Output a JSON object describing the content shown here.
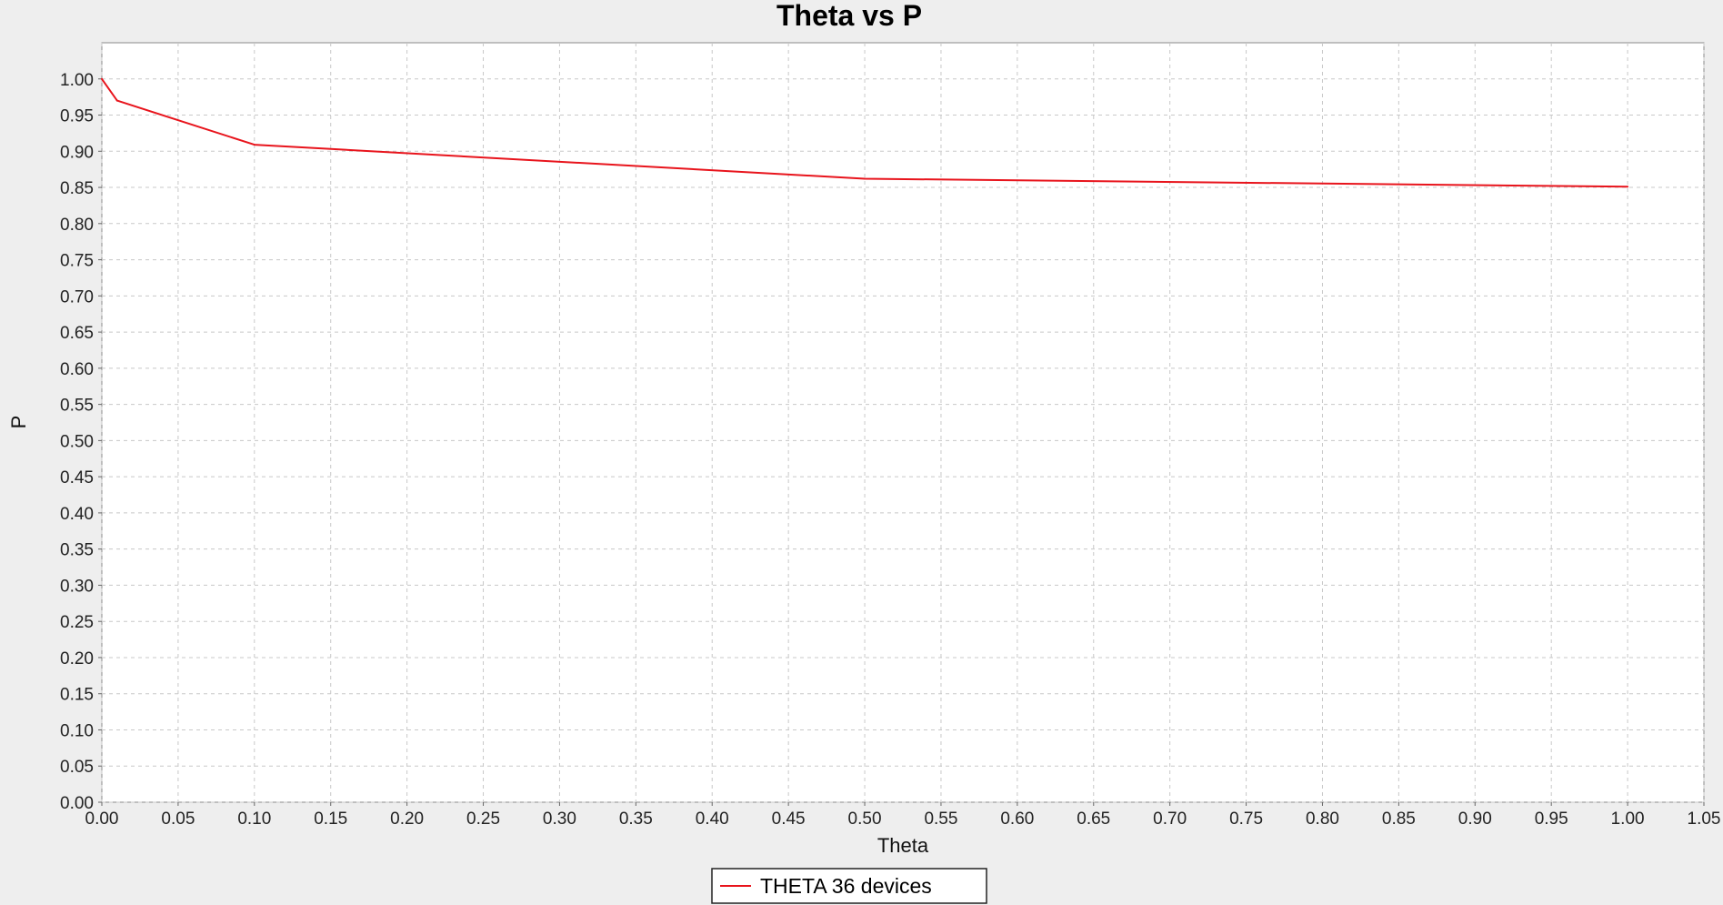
{
  "chart_data": {
    "type": "line",
    "title": "Theta vs P",
    "xlabel": "Theta",
    "ylabel": "P",
    "xlim": [
      0.0,
      1.05
    ],
    "ylim": [
      0.0,
      1.05
    ],
    "x_ticks": [
      "0.00",
      "0.05",
      "0.10",
      "0.15",
      "0.20",
      "0.25",
      "0.30",
      "0.35",
      "0.40",
      "0.45",
      "0.50",
      "0.55",
      "0.60",
      "0.65",
      "0.70",
      "0.75",
      "0.80",
      "0.85",
      "0.90",
      "0.95",
      "1.00",
      "1.05"
    ],
    "y_ticks": [
      "0.00",
      "0.05",
      "0.10",
      "0.15",
      "0.20",
      "0.25",
      "0.30",
      "0.35",
      "0.40",
      "0.45",
      "0.50",
      "0.55",
      "0.60",
      "0.65",
      "0.70",
      "0.75",
      "0.80",
      "0.85",
      "0.90",
      "0.95",
      "1.00"
    ],
    "grid": true,
    "legend_position": "bottom-center",
    "series": [
      {
        "name": "THETA 36 devices",
        "color": "#e8141c",
        "x": [
          0.0,
          0.01,
          0.1,
          0.5,
          1.0
        ],
        "y": [
          1.0,
          0.97,
          0.909,
          0.862,
          0.851
        ]
      }
    ]
  }
}
